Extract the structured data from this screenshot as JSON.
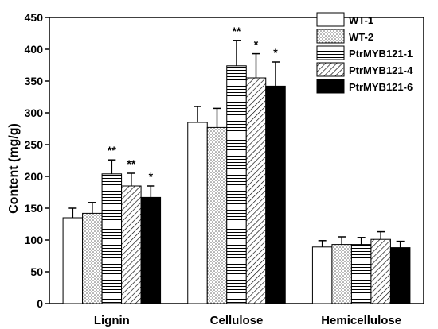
{
  "chart_data": {
    "type": "bar",
    "ylabel": "Content (mg/g)",
    "ylim": [
      0,
      450
    ],
    "yticks": [
      0,
      50,
      100,
      150,
      200,
      250,
      300,
      350,
      400,
      450
    ],
    "categories": [
      "Lignin",
      "Cellulose",
      "Hemicellulose"
    ],
    "legend_position": "top-right",
    "series": [
      {
        "name": "WT-1",
        "fill": "white",
        "values": [
          135,
          285,
          89
        ],
        "errors": [
          15,
          25,
          10
        ],
        "significance": [
          "",
          "",
          ""
        ]
      },
      {
        "name": "WT-2",
        "fill": "dotted",
        "values": [
          142,
          277,
          93
        ],
        "errors": [
          17,
          30,
          12
        ],
        "significance": [
          "",
          "",
          ""
        ]
      },
      {
        "name": "PtrMYB121-1",
        "fill": "horizontal-lines",
        "values": [
          204,
          374,
          93
        ],
        "errors": [
          22,
          40,
          11
        ],
        "significance": [
          "**",
          "**",
          ""
        ]
      },
      {
        "name": "PtrMYB121-4",
        "fill": "diagonal-lines",
        "values": [
          185,
          355,
          101
        ],
        "errors": [
          20,
          38,
          12
        ],
        "significance": [
          "**",
          "*",
          ""
        ]
      },
      {
        "name": "PtrMYB121-6",
        "fill": "black",
        "values": [
          167,
          342,
          88
        ],
        "errors": [
          18,
          38,
          10
        ],
        "significance": [
          "*",
          "*",
          ""
        ]
      }
    ]
  }
}
